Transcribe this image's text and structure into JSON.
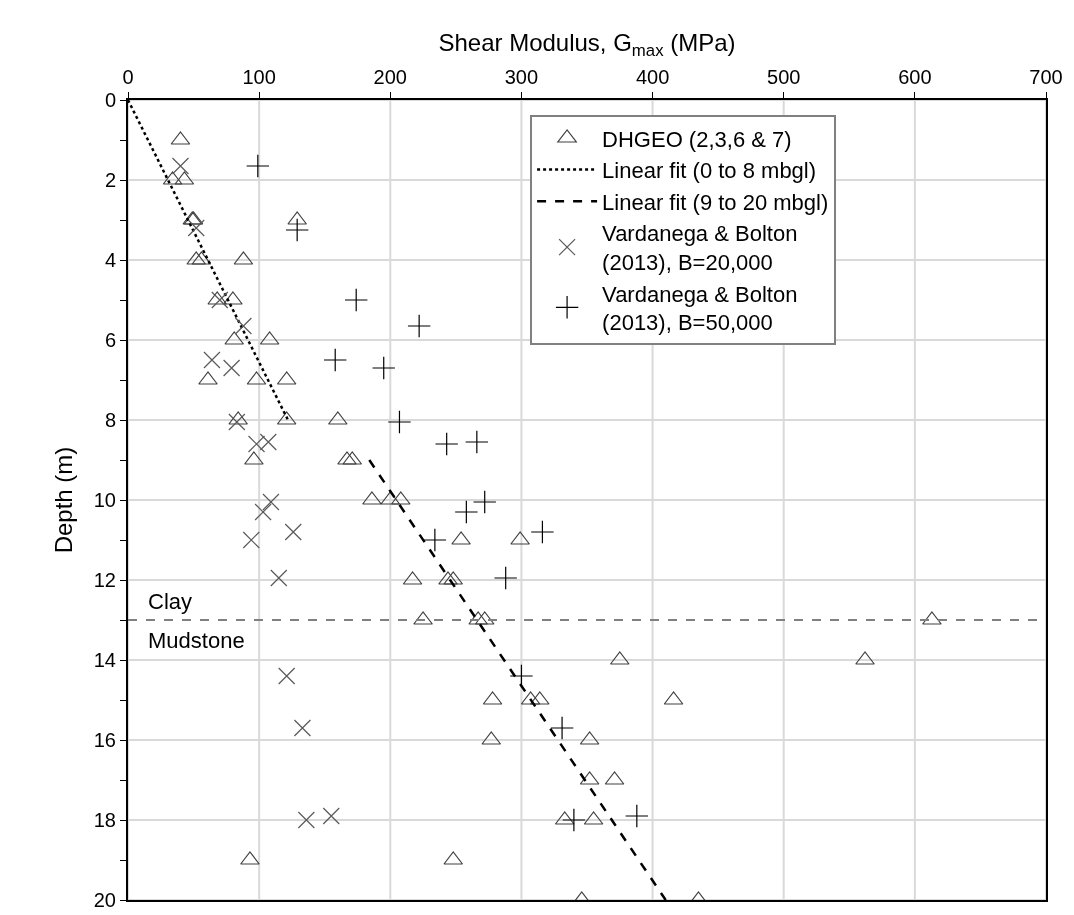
{
  "chart_data": {
    "type": "scatter",
    "xlabel": "Shear Modulus, G$_{max}$ (MPa)",
    "ylabel": "Depth (m)",
    "xlim": [
      0,
      700
    ],
    "xticks": [
      0,
      100,
      200,
      300,
      400,
      500,
      600,
      700
    ],
    "ylim": [
      20,
      0
    ],
    "yticks": [
      0,
      {
        "value": 1,
        "label": null
      },
      2,
      {
        "value": 3,
        "label": null
      },
      4,
      {
        "value": 5,
        "label": null
      },
      6,
      {
        "value": 7,
        "label": null
      },
      8,
      {
        "value": 9,
        "label": null
      },
      10,
      {
        "value": 11,
        "label": null
      },
      12,
      {
        "value": 13,
        "label": null
      },
      14,
      {
        "value": 15,
        "label": null
      },
      16,
      {
        "value": 17,
        "label": null
      },
      18,
      {
        "value": 19,
        "label": null
      },
      20
    ],
    "grid": true,
    "legend": "top right",
    "series": [
      {
        "name": "DHGEO (2,3,6 & 7)",
        "type": "scatter",
        "marker": "triangle",
        "color": "#404040",
        "x": [
          40,
          34,
          43,
          49,
          50,
          129,
          52,
          56,
          88,
          68,
          80,
          81,
          108,
          61,
          98,
          121,
          84,
          121,
          160,
          96,
          167,
          171,
          186,
          200,
          208,
          217,
          244,
          248,
          254,
          299,
          225,
          267,
          272,
          375,
          562,
          613,
          278,
          307,
          314,
          416,
          277,
          352,
          352,
          371,
          333,
          355,
          93,
          248,
          346,
          435
        ],
        "values": [
          1,
          2,
          2,
          3,
          3,
          3,
          4,
          4,
          4,
          5,
          5,
          6,
          6,
          7,
          7,
          7,
          8,
          8,
          8,
          9,
          9,
          9,
          10,
          10,
          10,
          12,
          12,
          12,
          11,
          11,
          13,
          13,
          13,
          14,
          14,
          13,
          15,
          15,
          15,
          15,
          16,
          16,
          17,
          17,
          18,
          18,
          19,
          19,
          20,
          20
        ]
      },
      {
        "name": "Linear fit (0 to 8 mbgl)",
        "type": "line",
        "line_style": "dotted",
        "marker": "none",
        "color": "#000000",
        "x": [
          0,
          122
        ],
        "values": [
          0,
          8
        ]
      },
      {
        "name": "Linear fit (9 to 20 mbgl)",
        "type": "line",
        "line_style": "dashed",
        "marker": "none",
        "color": "#000000",
        "x": [
          184,
          410
        ],
        "values": [
          9,
          20
        ]
      },
      {
        "name": "Vardanega & Bolton (2013), B=20,000",
        "type": "scatter",
        "marker": "x",
        "color": "#595959",
        "x": [
          40,
          52,
          70,
          88,
          64,
          79,
          83,
          98,
          107,
          109,
          103,
          126,
          94,
          115,
          121,
          133,
          136,
          155
        ],
        "values": [
          1.65,
          3.2,
          5,
          5.65,
          6.5,
          6.7,
          8.05,
          8.6,
          8.55,
          10.05,
          10.3,
          10.8,
          11,
          11.95,
          14.4,
          15.7,
          18,
          17.9
        ]
      },
      {
        "name": "Vardanega & Bolton (2013), B=50,000",
        "type": "scatter",
        "marker": "cross",
        "color": "#000000",
        "x": [
          99,
          129,
          158,
          174,
          222,
          195,
          207,
          243,
          266,
          272,
          258,
          316,
          234,
          288,
          300,
          331,
          340,
          388
        ],
        "values": [
          1.65,
          3.25,
          6.5,
          5,
          5.65,
          6.7,
          8.05,
          8.6,
          8.55,
          10.05,
          10.3,
          10.8,
          11,
          11.95,
          14.4,
          15.7,
          18,
          17.9
        ]
      }
    ],
    "ref_lines": [
      {
        "axis": "y",
        "value": 13,
        "color": "#808080",
        "line_style": "dashed"
      }
    ],
    "annotations": [
      "Clay",
      "Mudstone"
    ]
  }
}
